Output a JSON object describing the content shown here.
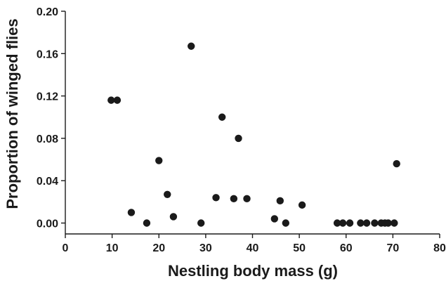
{
  "chart_data": {
    "type": "scatter",
    "title": "",
    "xlabel": "Nestling body mass (g)",
    "ylabel": "Proportion of winged flies",
    "xlim": [
      0,
      80
    ],
    "ylim": [
      0,
      0.2
    ],
    "grid": false,
    "x_ticks": [
      "0",
      "10",
      "20",
      "30",
      "40",
      "50",
      "60",
      "70",
      "80"
    ],
    "y_ticks": [
      "0.00",
      "0.04",
      "0.08",
      "0.12",
      "0.16",
      "0.20"
    ],
    "x_tick_values": [
      0,
      10,
      20,
      30,
      40,
      50,
      60,
      70,
      80
    ],
    "y_tick_values": [
      0,
      0.04,
      0.08,
      0.12,
      0.16,
      0.2
    ],
    "marker_color": "#1a1a1a",
    "points": [
      {
        "x": 9.8,
        "y": 0.116
      },
      {
        "x": 11.1,
        "y": 0.116
      },
      {
        "x": 14.1,
        "y": 0.01
      },
      {
        "x": 17.4,
        "y": 0.0
      },
      {
        "x": 20.0,
        "y": 0.059
      },
      {
        "x": 21.8,
        "y": 0.027
      },
      {
        "x": 23.1,
        "y": 0.006
      },
      {
        "x": 26.9,
        "y": 0.167
      },
      {
        "x": 29.0,
        "y": 0.0
      },
      {
        "x": 32.2,
        "y": 0.024
      },
      {
        "x": 33.5,
        "y": 0.1
      },
      {
        "x": 36.0,
        "y": 0.023
      },
      {
        "x": 37.0,
        "y": 0.08
      },
      {
        "x": 38.8,
        "y": 0.023
      },
      {
        "x": 44.7,
        "y": 0.004
      },
      {
        "x": 45.9,
        "y": 0.021
      },
      {
        "x": 47.1,
        "y": 0.0
      },
      {
        "x": 50.6,
        "y": 0.017
      },
      {
        "x": 58.1,
        "y": 0.0
      },
      {
        "x": 59.3,
        "y": 0.0
      },
      {
        "x": 60.8,
        "y": 0.0
      },
      {
        "x": 63.1,
        "y": 0.0
      },
      {
        "x": 64.4,
        "y": 0.0
      },
      {
        "x": 66.1,
        "y": 0.0
      },
      {
        "x": 67.5,
        "y": 0.0
      },
      {
        "x": 68.3,
        "y": 0.0
      },
      {
        "x": 69.0,
        "y": 0.0
      },
      {
        "x": 70.3,
        "y": 0.0
      },
      {
        "x": 70.8,
        "y": 0.056
      }
    ]
  }
}
